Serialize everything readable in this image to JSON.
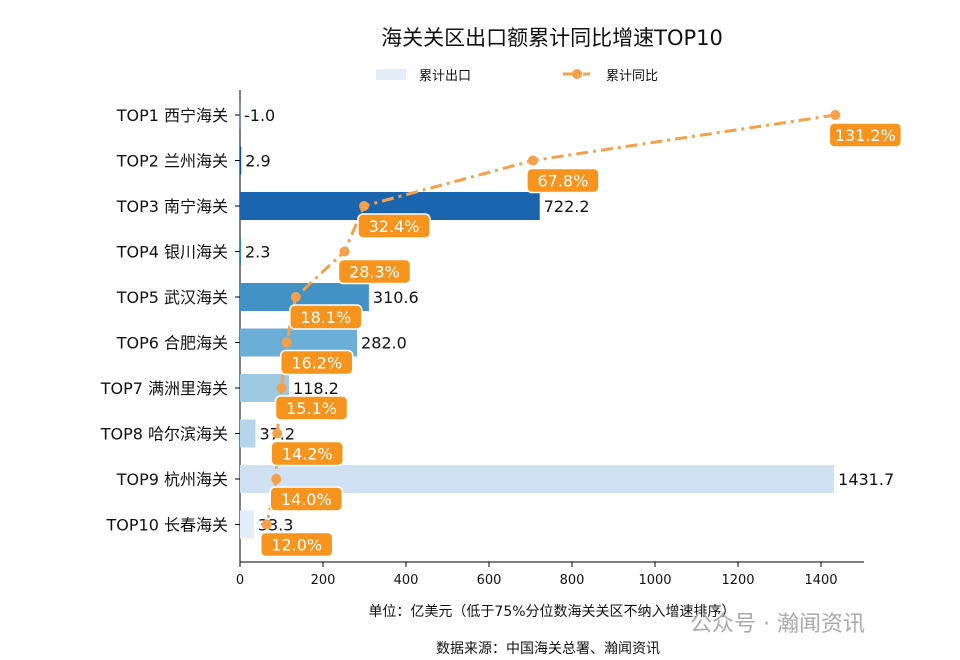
{
  "chart_data": {
    "type": "bar",
    "orientation": "horizontal",
    "title": "海关关区出口额累计同比增速TOP10",
    "categories": [
      "TOP1 西宁海关",
      "TOP2 兰州海关",
      "TOP3 南宁海关",
      "TOP4 银川海关",
      "TOP5 武汉海关",
      "TOP6 合肥海关",
      "TOP7 满洲里海关",
      "TOP8 哈尔滨海关",
      "TOP9 杭州海关",
      "TOP10 长春海关"
    ],
    "series": [
      {
        "name": "累计出口",
        "type": "bar",
        "values": [
          -1.0,
          2.9,
          722.2,
          2.3,
          310.6,
          282.0,
          118.2,
          37.2,
          1431.7,
          33.3
        ],
        "value_labels": [
          "-1.0",
          "2.9",
          "722.2",
          "2.3",
          "310.6",
          "282.0",
          "118.2",
          "37.2",
          "1431.7",
          "33.3"
        ],
        "colors": [
          "#08306b",
          "#0b4f8f",
          "#1a65ad",
          "#2b7bba",
          "#4292c6",
          "#6baed6",
          "#9ecae1",
          "#b6d4ea",
          "#cfe1f2",
          "#e3eef9"
        ]
      },
      {
        "name": "累计同比",
        "type": "line",
        "values": [
          131.2,
          67.8,
          32.4,
          28.3,
          18.1,
          16.2,
          15.1,
          14.2,
          14.0,
          12.0
        ],
        "value_labels": [
          "131.2%",
          "67.8%",
          "32.4%",
          "28.3%",
          "18.1%",
          "16.2%",
          "15.1%",
          "14.2%",
          "14.0%",
          "12.0%"
        ],
        "color": "#f5a04a",
        "label_color": "#f7941d",
        "secondary_axis_range": [
          6.4,
          128.2
        ],
        "style": "dash-dot"
      }
    ],
    "xlim": [
      0,
      1500
    ],
    "xticks": [
      "0",
      "200",
      "400",
      "600",
      "800",
      "1000",
      "1200",
      "1400"
    ],
    "xtick_values": [
      0,
      200,
      400,
      600,
      800,
      1000,
      1200,
      1400
    ],
    "xlabel": "单位：亿美元（低于75%分位数海关关区不纳入增速排序）",
    "source": "数据来源：中国海关总署、瀚闻资讯",
    "legend": {
      "placement": "top-center",
      "entries": [
        "累计出口",
        "累计同比"
      ]
    },
    "grid": false
  },
  "watermark": "公众号 · 瀚闻资讯"
}
